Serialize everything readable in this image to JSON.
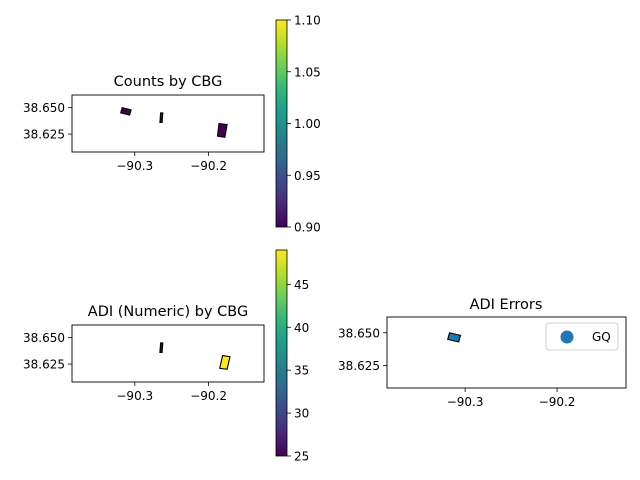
{
  "panels": [
    {
      "id": "counts",
      "title": "Counts by CBG",
      "xlim": [
        -90.385,
        -90.125
      ],
      "ylim": [
        38.608,
        38.662
      ],
      "xticks": [
        {
          "v": -90.3,
          "label": "−90.3"
        },
        {
          "v": -90.2,
          "label": "−90.2"
        }
      ],
      "yticks": [
        {
          "v": 38.65,
          "label": "38.650"
        },
        {
          "v": 38.625,
          "label": "38.625"
        }
      ],
      "shapes": [
        {
          "name": "cbg-west",
          "value": 0.9,
          "points": [
            [
              -90.317,
              38.65
            ],
            [
              -90.305,
              38.648
            ],
            [
              -90.307,
              38.643
            ],
            [
              -90.319,
              38.645
            ]
          ]
        },
        {
          "name": "cbg-central",
          "value": 0.9,
          "points": [
            [
              -90.265,
              38.645
            ],
            [
              -90.262,
              38.645
            ],
            [
              -90.263,
              38.636
            ],
            [
              -90.266,
              38.636
            ]
          ]
        },
        {
          "name": "cbg-east",
          "value": 0.9,
          "points": [
            [
              -90.186,
              38.635
            ],
            [
              -90.175,
              38.634
            ],
            [
              -90.178,
              38.622
            ],
            [
              -90.188,
              38.623
            ]
          ]
        }
      ],
      "colorbar": {
        "min": 0.9,
        "max": 1.1,
        "ticks": [
          "0.90",
          "0.95",
          "1.00",
          "1.05",
          "1.10"
        ]
      }
    },
    {
      "id": "adi-numeric",
      "title": "ADI (Numeric) by CBG",
      "xlim": [
        -90.385,
        -90.125
      ],
      "ylim": [
        38.608,
        38.662
      ],
      "xticks": [
        {
          "v": -90.3,
          "label": "−90.3"
        },
        {
          "v": -90.2,
          "label": "−90.2"
        }
      ],
      "yticks": [
        {
          "v": 38.65,
          "label": "38.650"
        },
        {
          "v": 38.625,
          "label": "38.625"
        }
      ],
      "shapes": [
        {
          "name": "cbg-central",
          "value": 25,
          "points": [
            [
              -90.265,
              38.645
            ],
            [
              -90.262,
              38.645
            ],
            [
              -90.263,
              38.636
            ],
            [
              -90.266,
              38.636
            ]
          ]
        },
        {
          "name": "cbg-east",
          "value": 49,
          "points": [
            [
              -90.181,
              38.633
            ],
            [
              -90.171,
              38.632
            ],
            [
              -90.175,
              38.62
            ],
            [
              -90.185,
              38.621
            ]
          ]
        }
      ],
      "colorbar": {
        "min": 25,
        "max": 49,
        "ticks": [
          "25",
          "30",
          "35",
          "40",
          "45"
        ]
      }
    },
    {
      "id": "adi-errors",
      "title": "ADI Errors",
      "xlim": [
        -90.385,
        -90.125
      ],
      "ylim": [
        38.608,
        38.662
      ],
      "xticks": [
        {
          "v": -90.3,
          "label": "−90.3"
        },
        {
          "v": -90.2,
          "label": "−90.2"
        }
      ],
      "yticks": [
        {
          "v": 38.65,
          "label": "38.650"
        },
        {
          "v": 38.625,
          "label": "38.625"
        }
      ],
      "shapes": [
        {
          "name": "cbg-west",
          "category": "GQ",
          "points": [
            [
              -90.317,
              38.65
            ],
            [
              -90.305,
              38.648
            ],
            [
              -90.307,
              38.643
            ],
            [
              -90.319,
              38.645
            ]
          ]
        }
      ],
      "legend": {
        "position": "top-right",
        "entries": [
          {
            "label": "GQ",
            "color": "#1f77b4"
          }
        ]
      }
    }
  ],
  "colors": {
    "viridis": [
      "#440154",
      "#482878",
      "#3e4989",
      "#31688e",
      "#26828e",
      "#1f9e89",
      "#35b779",
      "#6ece58",
      "#b5de2b",
      "#fde725"
    ],
    "category": "#1f77b4",
    "edge": "#000000"
  }
}
